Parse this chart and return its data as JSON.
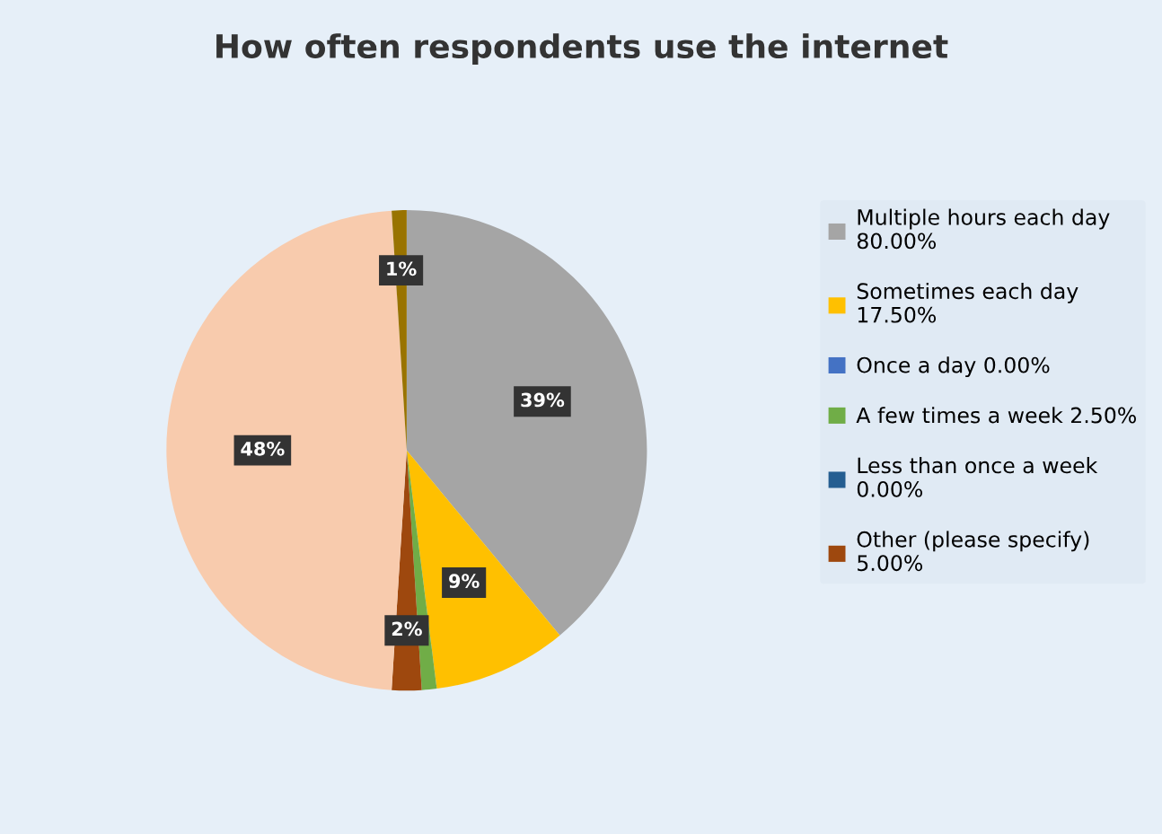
{
  "chart_data": {
    "type": "pie",
    "title": "How often respondents use the internet",
    "categories": [
      "Multiple hours each day\n80.00%",
      "Sometimes each day\n17.50%",
      "Once a day 0.00%",
      "A few times a week 2.50%",
      "Less than once a week\n0.00%",
      "Other (please specify)\n5.00%",
      null,
      null
    ],
    "values": [
      39,
      9,
      0,
      1,
      0,
      2,
      48,
      1
    ],
    "colors": [
      "#a5a5a5",
      "#ffc000",
      "#4472c4",
      "#70ad47",
      "#255e91",
      "#9e480e",
      "#f8cbad",
      "#997300"
    ],
    "value_labels": [
      "39%",
      "9%",
      null,
      null,
      null,
      "2%",
      "48%",
      "1%"
    ],
    "legend": "right"
  }
}
